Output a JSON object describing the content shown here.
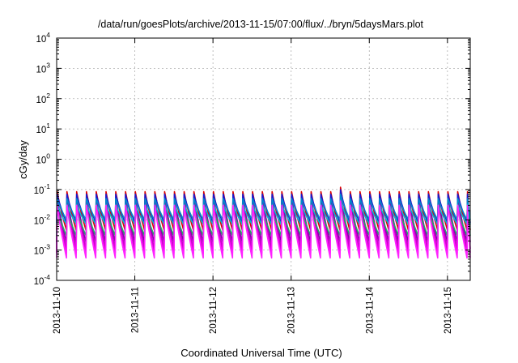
{
  "chart_data": {
    "type": "line",
    "title": "/data/run/goesPlots/archive/2013-11-15/07:00/flux/../bryn/5daysMars.plot",
    "xlabel": "Coordinated Universal Time (UTC)",
    "ylabel": "cGy/day",
    "yscale": "log",
    "ylim": [
      0.0001,
      10000
    ],
    "xlim": [
      "2013-11-10 00:00",
      "2013-11-15 07:00"
    ],
    "grid": true,
    "legend": "none",
    "y_ticks": [
      {
        "base": "10",
        "exp": "4"
      },
      {
        "base": "10",
        "exp": "3"
      },
      {
        "base": "10",
        "exp": "2"
      },
      {
        "base": "10",
        "exp": "1"
      },
      {
        "base": "10",
        "exp": "0"
      },
      {
        "base": "10",
        "exp": "-1"
      },
      {
        "base": "10",
        "exp": "-2"
      },
      {
        "base": "10",
        "exp": "-3"
      },
      {
        "base": "10",
        "exp": "-4"
      }
    ],
    "x_ticks": [
      "2013-11-10",
      "2013-11-11",
      "2013-11-12",
      "2013-11-13",
      "2013-11-14",
      "2013-11-15"
    ],
    "sawtooth": {
      "period_hours": 3,
      "start_hour": 0,
      "anomalies": [
        {
          "hour": 65,
          "dropFactor": 0.6
        },
        {
          "hour": 68,
          "dropFactor": 0.6
        },
        {
          "hour": 87,
          "peakBoost": 1.4
        }
      ]
    },
    "series": [
      {
        "color": "#dd0000",
        "peak": 0.085,
        "trough": 0.0045,
        "width": 1.6
      },
      {
        "color": "#ee00ee",
        "peak": 0.06,
        "trough": 0.0008,
        "width": 1.6
      },
      {
        "color": "#cc00cc",
        "peak": 0.05,
        "trough": 0.0011,
        "width": 1.4
      },
      {
        "color": "#8800aa",
        "peak": 0.055,
        "trough": 0.0018,
        "width": 1.3
      },
      {
        "color": "#1a1acc",
        "peak": 0.07,
        "trough": 0.008,
        "width": 1.8
      },
      {
        "color": "#0088cc",
        "peak": 0.05,
        "trough": 0.01,
        "width": 1.6
      },
      {
        "color": "#00bbcc",
        "peak": 0.032,
        "trough": 0.007,
        "width": 1.6
      },
      {
        "color": "#22aa66",
        "peak": 0.022,
        "trough": 0.003,
        "width": 1.4
      },
      {
        "color": "#ff22ff",
        "peak": 0.03,
        "trough": 0.00055,
        "width": 2.2
      }
    ]
  }
}
